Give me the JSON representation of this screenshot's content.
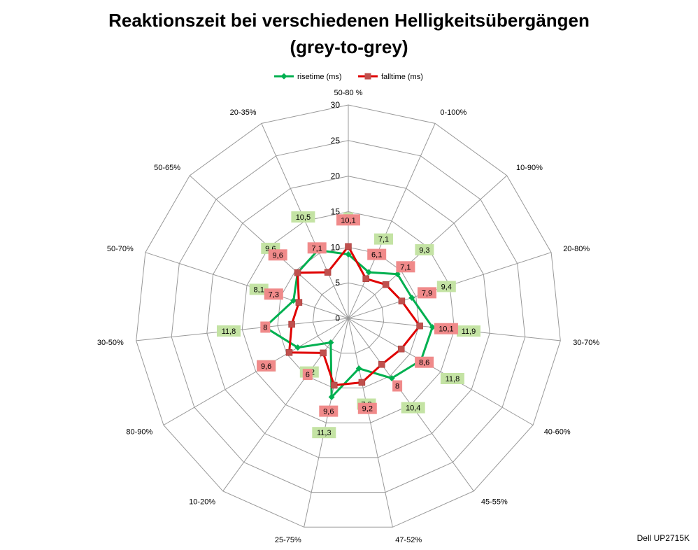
{
  "title_line1": "Reaktionszeit bei verschiedenen Helligkeitsübergängen",
  "title_line2": "(grey-to-grey)",
  "credit": "Dell UP2715K",
  "chart_data": {
    "type": "radar",
    "categories": [
      "50-80 %",
      "0-100%",
      "10-90%",
      "20-80%",
      "30-70%",
      "40-60%",
      "45-55%",
      "47-52%",
      "25-75%",
      "10-20%",
      "80-90%",
      "30-50%",
      "50-70%",
      "50-65%",
      "20-35%"
    ],
    "rlim": [
      0,
      30
    ],
    "rticks": [
      "0",
      "5",
      "10",
      "15",
      "20",
      "25",
      "30"
    ],
    "legend_position": "top",
    "series": [
      {
        "name": "risetime (ms)",
        "color": "#00b050",
        "label_bg": "#c4e3a4",
        "values": [
          9,
          7.1,
          9.3,
          9.4,
          11.9,
          11.8,
          10.4,
          7.2,
          11.3,
          4.2,
          8.2,
          11.8,
          8.1,
          9.6,
          10.5
        ]
      },
      {
        "name": "falltime (ms)",
        "color": "#e00000",
        "label_bg": "#f08a8a",
        "values": [
          10.1,
          6.1,
          7.1,
          7.9,
          10.1,
          8.6,
          8,
          9.2,
          9.6,
          6,
          9.6,
          8,
          7.3,
          9.6,
          7.1
        ]
      }
    ],
    "data_labels": {
      "risetime (ms)": [
        "9",
        "7,1",
        "9,3",
        "9,4",
        "11,9",
        "11,8",
        "10,4",
        "7,2",
        "11,3",
        "4,2",
        "8,2",
        "11,8",
        "8,1",
        "9,6",
        "10,5"
      ],
      "falltime (ms)": [
        "10,1",
        "6,1",
        "7,1",
        "7,9",
        "10,1",
        "8,6",
        "8",
        "9,2",
        "9,6",
        "6",
        "9,6",
        "8",
        "7,3",
        "9,6",
        "7,1"
      ]
    }
  }
}
